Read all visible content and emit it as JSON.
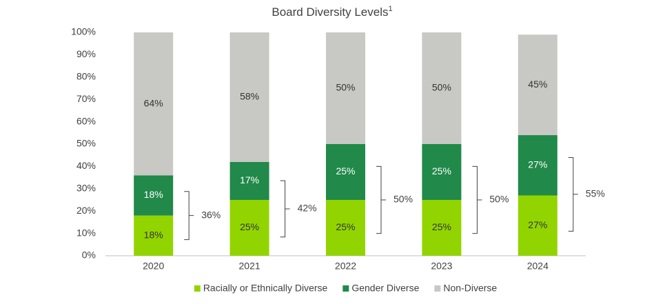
{
  "chart_data": {
    "type": "stacked_bar",
    "title": "Board Diversity Levels",
    "title_superscript": "1",
    "categories": [
      "2020",
      "2021",
      "2022",
      "2023",
      "2024"
    ],
    "series": [
      {
        "name": "Racially or Ethnically Diverse",
        "color": "#92d400",
        "text_color": "#333333",
        "values": [
          18,
          25,
          25,
          25,
          27
        ],
        "value_labels": [
          "18%",
          "25%",
          "25%",
          "25%",
          "27%"
        ]
      },
      {
        "name": "Gender Diverse",
        "color": "#21894a",
        "text_color": "#ffffff",
        "values": [
          18,
          17,
          25,
          25,
          27
        ],
        "value_labels": [
          "18%",
          "17%",
          "25%",
          "25%",
          "27%"
        ]
      },
      {
        "name": "Non-Diverse",
        "color": "#c8c8c4",
        "text_color": "#333333",
        "values": [
          64,
          58,
          50,
          50,
          45
        ],
        "value_labels": [
          "64%",
          "58%",
          "50%",
          "50%",
          "45%"
        ]
      }
    ],
    "diverse_totals": {
      "values": [
        36,
        42,
        50,
        50,
        55
      ],
      "value_labels": [
        "36%",
        "42%",
        "50%",
        "50%",
        "55%"
      ]
    },
    "ylim": [
      0,
      100
    ],
    "yticks": [
      {
        "value": 0,
        "label": "0%"
      },
      {
        "value": 10,
        "label": "10%"
      },
      {
        "value": 20,
        "label": "20%"
      },
      {
        "value": 30,
        "label": "30%"
      },
      {
        "value": 40,
        "label": "40%"
      },
      {
        "value": 50,
        "label": "50%"
      },
      {
        "value": 60,
        "label": "60%"
      },
      {
        "value": 70,
        "label": "70%"
      },
      {
        "value": 80,
        "label": "80%"
      },
      {
        "value": 90,
        "label": "90%"
      },
      {
        "value": 100,
        "label": "100%"
      }
    ],
    "grid": false,
    "legend": "bottom"
  }
}
